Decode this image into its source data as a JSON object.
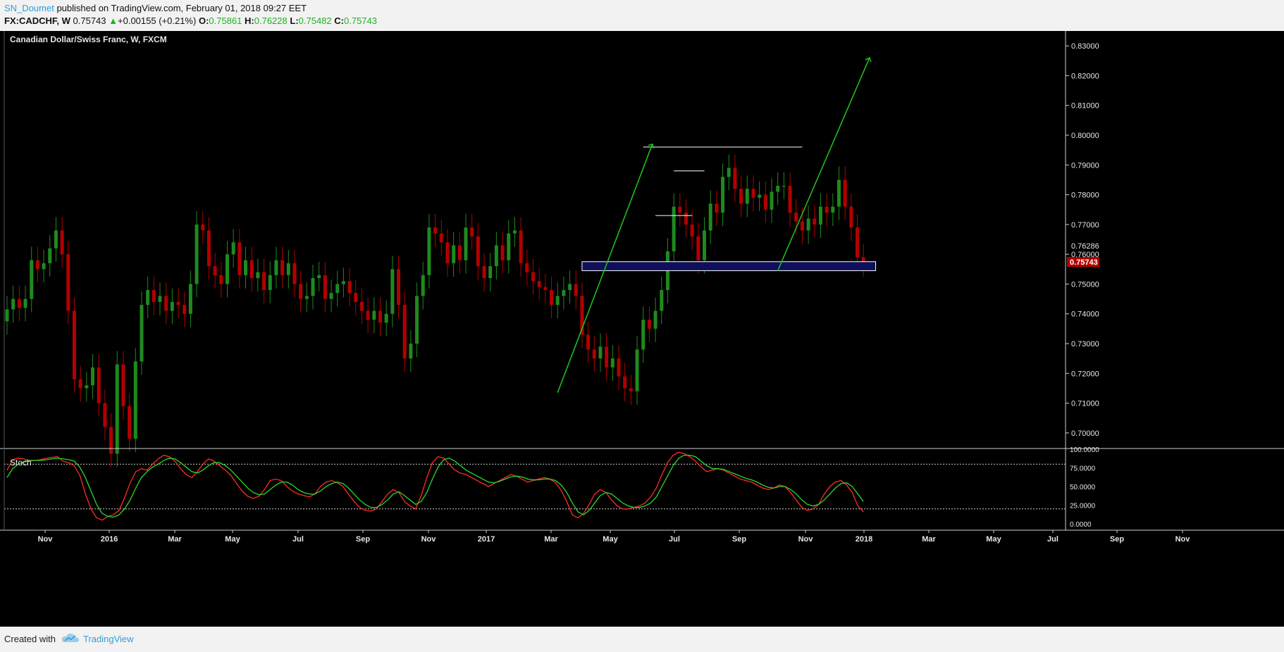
{
  "header": {
    "author": "SN_Doumet",
    "published_text": "published on TradingView.com, February 01, 2018 09:27 EET",
    "symbol": "FX:CADCHF, W",
    "last": "0.75743",
    "change_arrow": "▲",
    "change": "+0.00155 (+0.21%)",
    "o_label": "O:",
    "o": "0.75861",
    "h_label": "H:",
    "h": "0.76228",
    "l_label": "L:",
    "l": "0.75482",
    "c_label": "C:",
    "c": "0.75743"
  },
  "footer": {
    "created": "Created with",
    "brand": "TradingView",
    "logo_icon": "tradingview-cloud-icon"
  },
  "colors": {
    "bull": "#1e8a1e",
    "bear": "#b30000",
    "background": "#000000",
    "stoch_k": "#ff2a2a",
    "stoch_d": "#2bd82b",
    "arrow": "#1ec81e",
    "zone": "#0f0f5a",
    "price_tag": "#b30000"
  },
  "chart_data": [
    {
      "type": "candlestick",
      "title": "Canadian Dollar/Swiss Franc, W, FXCM",
      "ylim": [
        0.695,
        0.835
      ],
      "yticks": [
        "0.83000",
        "0.82000",
        "0.81000",
        "0.80000",
        "0.79000",
        "0.78000",
        "0.77000",
        "0.76000",
        "0.75000",
        "0.74000",
        "0.73000",
        "0.72000",
        "0.71000",
        "0.70000"
      ],
      "price_labels": {
        "reference": "0.76286",
        "last": "0.75743"
      },
      "x_labels": [
        "Nov",
        "2016",
        "Mar",
        "May",
        "Jul",
        "Sep",
        "Nov",
        "2017",
        "Mar",
        "May",
        "Jul",
        "Sep",
        "Nov",
        "2018",
        "Mar",
        "May",
        "Jul",
        "Sep",
        "Nov"
      ],
      "closes": [
        0.7415,
        0.745,
        0.742,
        0.745,
        0.758,
        0.755,
        0.757,
        0.762,
        0.768,
        0.76,
        0.741,
        0.718,
        0.715,
        0.716,
        0.722,
        0.71,
        0.702,
        0.693,
        0.723,
        0.709,
        0.698,
        0.724,
        0.743,
        0.748,
        0.744,
        0.746,
        0.741,
        0.744,
        0.743,
        0.74,
        0.75,
        0.77,
        0.768,
        0.756,
        0.753,
        0.75,
        0.76,
        0.764,
        0.753,
        0.758,
        0.752,
        0.754,
        0.748,
        0.753,
        0.758,
        0.753,
        0.757,
        0.75,
        0.745,
        0.746,
        0.752,
        0.753,
        0.745,
        0.747,
        0.75,
        0.751,
        0.747,
        0.744,
        0.741,
        0.738,
        0.741,
        0.737,
        0.74,
        0.755,
        0.743,
        0.725,
        0.73,
        0.746,
        0.753,
        0.769,
        0.767,
        0.764,
        0.757,
        0.763,
        0.758,
        0.769,
        0.766,
        0.756,
        0.752,
        0.756,
        0.763,
        0.758,
        0.767,
        0.768,
        0.757,
        0.754,
        0.751,
        0.749,
        0.748,
        0.743,
        0.746,
        0.748,
        0.75,
        0.746,
        0.733,
        0.728,
        0.725,
        0.729,
        0.722,
        0.725,
        0.719,
        0.715,
        0.714,
        0.728,
        0.738,
        0.735,
        0.741,
        0.748,
        0.761,
        0.776,
        0.774,
        0.77,
        0.766,
        0.758,
        0.768,
        0.777,
        0.774,
        0.786,
        0.789,
        0.782,
        0.777,
        0.782,
        0.779,
        0.78,
        0.775,
        0.781,
        0.783,
        0.783,
        0.774,
        0.771,
        0.768,
        0.772,
        0.77,
        0.776,
        0.774,
        0.776,
        0.785,
        0.776,
        0.769,
        0.759,
        0.757
      ],
      "stochastic": {
        "label": "Stoch",
        "ylim": [
          0,
          100
        ],
        "yticks": [
          "100.0000",
          "75.0000",
          "50.0000",
          "25.0000",
          "0.0000"
        ],
        "levels": [
          80,
          20
        ],
        "k": [
          72,
          86,
          88,
          87,
          84,
          85,
          86,
          88,
          89,
          90,
          84,
          82,
          78,
          65,
          40,
          20,
          8,
          5,
          10,
          12,
          18,
          35,
          55,
          70,
          74,
          72,
          80,
          87,
          92,
          90,
          84,
          74,
          66,
          62,
          70,
          80,
          87,
          84,
          78,
          72,
          65,
          54,
          44,
          37,
          34,
          37,
          46,
          58,
          60,
          58,
          50,
          44,
          40,
          38,
          36,
          40,
          50,
          56,
          58,
          55,
          50,
          40,
          30,
          22,
          18,
          17,
          20,
          30,
          40,
          46,
          42,
          30,
          24,
          20,
          38,
          62,
          82,
          90,
          88,
          80,
          72,
          68,
          66,
          62,
          58,
          54,
          50,
          54,
          58,
          62,
          66,
          64,
          60,
          56,
          58,
          60,
          62,
          60,
          55,
          45,
          30,
          12,
          8,
          14,
          26,
          40,
          46,
          42,
          32,
          24,
          20,
          20,
          22,
          24,
          28,
          36,
          48,
          66,
          82,
          92,
          96,
          94,
          90,
          84,
          76,
          70,
          72,
          74,
          72,
          68,
          64,
          60,
          58,
          56,
          52,
          48,
          46,
          48,
          52,
          50,
          42,
          32,
          22,
          18,
          20,
          26,
          40,
          50,
          56,
          58,
          52,
          42,
          24,
          16
        ],
        "d": [
          62,
          74,
          80,
          83,
          85,
          85,
          85,
          86,
          87,
          88,
          87,
          86,
          84,
          76,
          62,
          44,
          26,
          14,
          10,
          9,
          12,
          20,
          32,
          48,
          62,
          70,
          76,
          80,
          85,
          88,
          87,
          82,
          76,
          70,
          68,
          72,
          78,
          82,
          82,
          78,
          72,
          64,
          56,
          48,
          42,
          39,
          40,
          46,
          52,
          56,
          56,
          52,
          46,
          42,
          40,
          40,
          44,
          50,
          54,
          56,
          54,
          48,
          40,
          32,
          26,
          22,
          22,
          26,
          32,
          40,
          43,
          38,
          32,
          26,
          30,
          42,
          60,
          76,
          86,
          88,
          84,
          78,
          72,
          68,
          64,
          60,
          56,
          55,
          57,
          60,
          63,
          64,
          63,
          60,
          59,
          59,
          60,
          60,
          58,
          52,
          42,
          28,
          16,
          12,
          18,
          28,
          38,
          42,
          40,
          34,
          28,
          24,
          22,
          22,
          24,
          28,
          36,
          50,
          64,
          78,
          88,
          92,
          92,
          90,
          84,
          78,
          74,
          74,
          73,
          70,
          67,
          64,
          61,
          59,
          56,
          52,
          49,
          48,
          50,
          50,
          46,
          40,
          32,
          26,
          24,
          26,
          32,
          40,
          48,
          54,
          55,
          50,
          40,
          30
        ]
      },
      "annotations": {
        "support_zone": [
          0.7545,
          0.7575
        ],
        "resistance_line": 0.796,
        "range_top": 0.788,
        "range_bottom": 0.773,
        "projection_target": 0.826
      }
    }
  ]
}
